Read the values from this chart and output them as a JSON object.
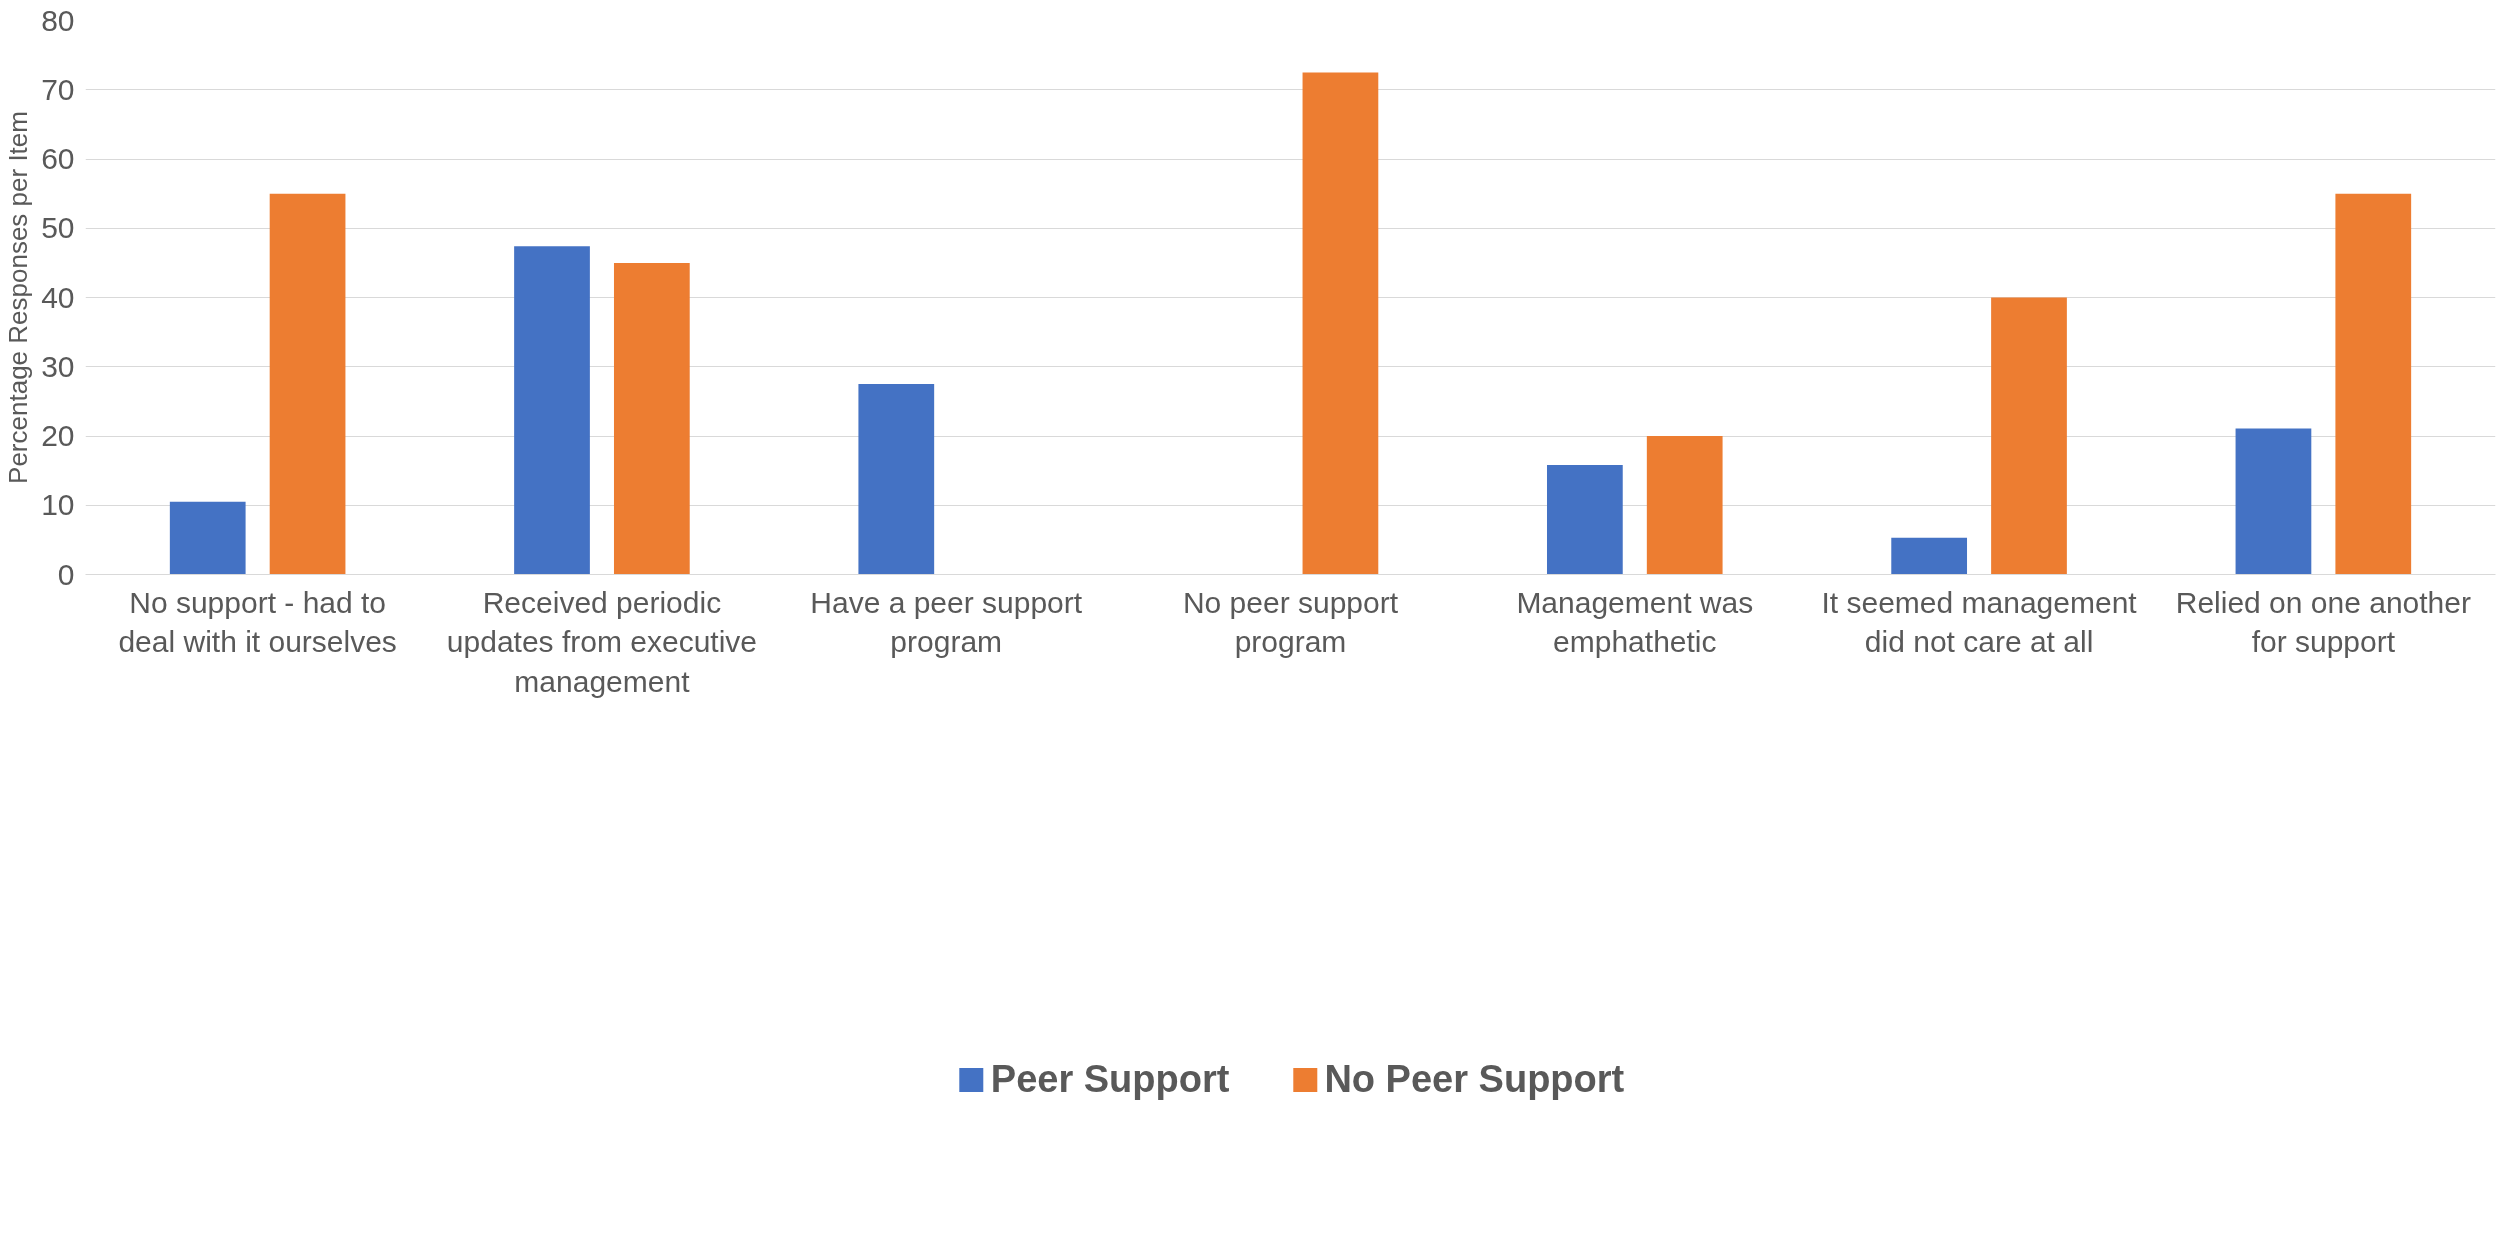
{
  "chart_data": {
    "type": "bar",
    "ylabel": "Percentage Responses per Item",
    "categories": [
      "No support - had to deal with it ourselves",
      "Received periodic updates from executive management",
      "Have a peer support program",
      "No peer support program",
      "Management was emphathetic",
      "It seemed management did not care at all",
      "Relied on one another for support"
    ],
    "series": [
      {
        "name": "Peer Support",
        "color": "#4472c4",
        "values": [
          10.5,
          47.4,
          27.5,
          null,
          15.8,
          5.3,
          21.1
        ]
      },
      {
        "name": "No Peer Support",
        "color": "#ed7d31",
        "values": [
          55,
          45,
          null,
          72.5,
          20,
          40,
          55
        ]
      }
    ],
    "ylim": [
      0,
      80
    ],
    "yticks": [
      0,
      10,
      20,
      30,
      40,
      50,
      60,
      70,
      80
    ],
    "grid": "y",
    "legend": "bottom"
  }
}
